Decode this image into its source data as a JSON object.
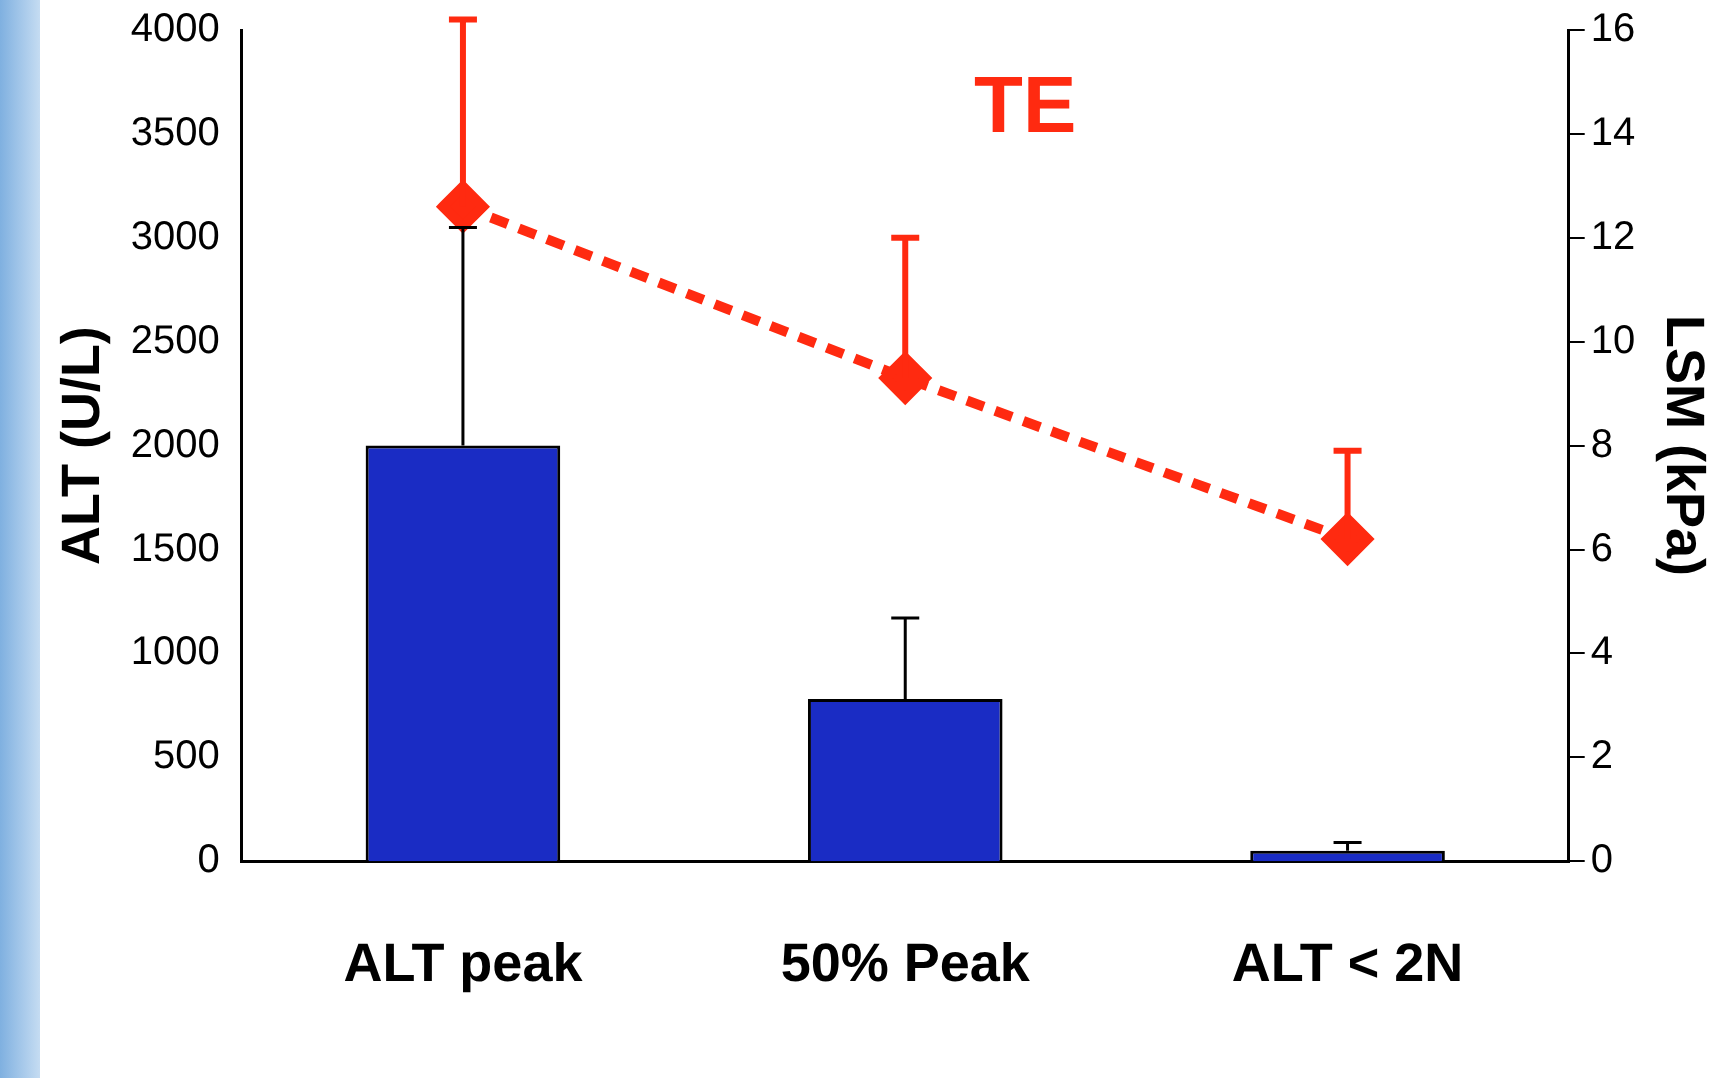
{
  "chart_data": {
    "type": "bar",
    "ylabel": "ALT (U/L)",
    "y2label": "LSM (kPa)",
    "categories": [
      "ALT peak",
      "50% Peak",
      "ALT < 2N"
    ],
    "series": [
      {
        "color": "#1a2cc4",
        "values": [
          2000,
          780,
          50
        ],
        "errors": [
          [
            2000,
            3050
          ],
          [
            780,
            1170
          ],
          [
            50,
            90
          ]
        ]
      },
      {
        "type": "line",
        "name": "TE",
        "axis": "y2",
        "color": "#ff2a10",
        "values": [
          12.6,
          9.3,
          6.2
        ],
        "errors": [
          [
            12.6,
            16.2
          ],
          [
            9.3,
            12.0
          ],
          [
            6.2,
            7.9
          ]
        ],
        "marker": "diamond",
        "line_style": "dashed"
      }
    ],
    "ylim": [
      0,
      4000
    ],
    "yticks": [
      0,
      500,
      1000,
      1500,
      2000,
      2500,
      3000,
      3500,
      4000
    ],
    "y2lim": [
      0,
      16
    ],
    "y2ticks": [
      0,
      2,
      4,
      6,
      8,
      10,
      12,
      14,
      16
    ],
    "grid": false,
    "legend": false
  }
}
